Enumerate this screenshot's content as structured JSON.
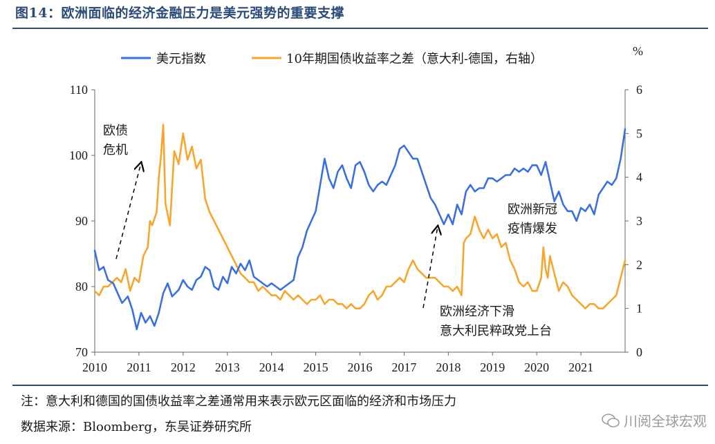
{
  "title": "图14：欧洲面临的经济金融压力是美元强势的重要支撑",
  "note": "注：意大利和德国的国债收益率之差通常用来表示欧元区面临的经济和市场压力",
  "source": "数据来源：Bloomberg，东吴证券研究所",
  "watermark": "川阅全球宏观",
  "chart_data": {
    "type": "line",
    "x_ticks": [
      "2010",
      "2011",
      "2012",
      "2013",
      "2014",
      "2015",
      "2016",
      "2017",
      "2018",
      "2019",
      "2020",
      "2021"
    ],
    "x_range": [
      2010.0,
      2022.0
    ],
    "y_left": {
      "ticks": [
        "70",
        "80",
        "90",
        "100",
        "110"
      ],
      "range": [
        70,
        110
      ]
    },
    "y_right": {
      "unit": "%",
      "ticks": [
        "0",
        "1",
        "2",
        "3",
        "4",
        "5",
        "6"
      ],
      "range": [
        0,
        6
      ]
    },
    "legend": [
      "美元指数",
      "10年期国债收益率之差（意大利-德国，右轴）"
    ],
    "annotations": [
      "欧债",
      "危机",
      "欧洲新冠",
      "疫情爆发",
      "欧洲经济下滑",
      "意大利民粹政党上台"
    ],
    "series": [
      {
        "name": "美元指数",
        "axis": "left",
        "color": "#3a6fe0",
        "x": [
          2010.0,
          2010.05,
          2010.1,
          2010.2,
          2010.3,
          2010.42,
          2010.55,
          2010.62,
          2010.75,
          2010.85,
          2010.95,
          2011.05,
          2011.15,
          2011.25,
          2011.35,
          2011.45,
          2011.55,
          2011.65,
          2011.75,
          2011.9,
          2012.0,
          2012.1,
          2012.2,
          2012.3,
          2012.4,
          2012.5,
          2012.6,
          2012.7,
          2012.8,
          2012.9,
          2013.0,
          2013.1,
          2013.2,
          2013.3,
          2013.4,
          2013.5,
          2013.6,
          2013.7,
          2013.8,
          2013.9,
          2014.0,
          2014.1,
          2014.2,
          2014.3,
          2014.4,
          2014.5,
          2014.6,
          2014.7,
          2014.8,
          2014.9,
          2015.0,
          2015.1,
          2015.2,
          2015.3,
          2015.4,
          2015.5,
          2015.6,
          2015.7,
          2015.8,
          2015.9,
          2016.0,
          2016.1,
          2016.2,
          2016.3,
          2016.4,
          2016.5,
          2016.6,
          2016.7,
          2016.8,
          2016.9,
          2017.0,
          2017.1,
          2017.2,
          2017.3,
          2017.4,
          2017.5,
          2017.6,
          2017.7,
          2017.8,
          2017.9,
          2018.0,
          2018.1,
          2018.2,
          2018.3,
          2018.4,
          2018.5,
          2018.6,
          2018.7,
          2018.8,
          2018.9,
          2019.0,
          2019.1,
          2019.2,
          2019.3,
          2019.4,
          2019.5,
          2019.6,
          2019.7,
          2019.8,
          2019.9,
          2020.0,
          2020.1,
          2020.2,
          2020.3,
          2020.4,
          2020.5,
          2020.6,
          2020.7,
          2020.8,
          2020.9,
          2021.0,
          2021.1,
          2021.2,
          2021.3,
          2021.4,
          2021.5,
          2021.6,
          2021.7,
          2021.8,
          2021.9,
          2022.0
        ],
        "values": [
          85.5,
          84.0,
          82.5,
          83.0,
          81.0,
          80.5,
          78.5,
          77.5,
          78.5,
          76.5,
          73.5,
          76.0,
          74.5,
          75.5,
          74.0,
          76.0,
          79.0,
          80.5,
          78.5,
          79.5,
          81.0,
          80.0,
          79.5,
          81.0,
          81.5,
          83.0,
          82.5,
          80.0,
          79.5,
          81.5,
          80.5,
          83.0,
          82.0,
          83.5,
          82.5,
          84.0,
          81.5,
          81.0,
          80.5,
          80.0,
          80.5,
          80.0,
          79.5,
          80.0,
          80.5,
          81.0,
          84.5,
          86.0,
          88.5,
          90.0,
          91.5,
          95.5,
          99.5,
          96.5,
          95.0,
          97.5,
          98.5,
          96.5,
          95.0,
          98.5,
          99.0,
          97.5,
          95.5,
          94.5,
          95.5,
          96.0,
          95.5,
          97.0,
          98.5,
          101.0,
          101.5,
          100.5,
          99.5,
          99.5,
          97.5,
          95.5,
          93.5,
          92.5,
          91.0,
          89.5,
          91.0,
          89.5,
          92.5,
          91.0,
          94.5,
          95.5,
          94.5,
          95.0,
          95.0,
          96.5,
          96.5,
          96.0,
          96.5,
          97.0,
          97.0,
          98.0,
          97.5,
          98.0,
          97.5,
          98.5,
          98.5,
          97.0,
          99.0,
          96.0,
          93.0,
          94.5,
          92.5,
          91.5,
          91.5,
          90.0,
          92.0,
          91.5,
          92.5,
          91.0,
          94.0,
          95.0,
          96.0,
          95.5,
          96.5,
          99.5,
          104.0
        ]
      },
      {
        "name": "10年期国债收益率之差（意大利-德国，右轴）",
        "axis": "right",
        "color": "#f6a52d",
        "x": [
          2010.0,
          2010.1,
          2010.2,
          2010.3,
          2010.4,
          2010.5,
          2010.6,
          2010.7,
          2010.8,
          2010.9,
          2011.0,
          2011.1,
          2011.2,
          2011.25,
          2011.3,
          2011.4,
          2011.45,
          2011.5,
          2011.55,
          2011.6,
          2011.7,
          2011.8,
          2011.9,
          2012.0,
          2012.1,
          2012.2,
          2012.3,
          2012.4,
          2012.5,
          2012.6,
          2012.7,
          2012.8,
          2012.9,
          2013.0,
          2013.1,
          2013.2,
          2013.3,
          2013.4,
          2013.5,
          2013.6,
          2013.7,
          2013.8,
          2013.9,
          2014.0,
          2014.1,
          2014.2,
          2014.3,
          2014.4,
          2014.5,
          2014.6,
          2014.7,
          2014.8,
          2014.9,
          2015.0,
          2015.1,
          2015.2,
          2015.3,
          2015.4,
          2015.5,
          2015.6,
          2015.7,
          2015.8,
          2015.9,
          2016.0,
          2016.1,
          2016.2,
          2016.3,
          2016.4,
          2016.5,
          2016.6,
          2016.7,
          2016.8,
          2016.9,
          2017.0,
          2017.1,
          2017.2,
          2017.3,
          2017.4,
          2017.5,
          2017.6,
          2017.7,
          2017.8,
          2017.9,
          2018.0,
          2018.1,
          2018.2,
          2018.3,
          2018.35,
          2018.4,
          2018.5,
          2018.6,
          2018.7,
          2018.8,
          2018.9,
          2019.0,
          2019.1,
          2019.2,
          2019.3,
          2019.4,
          2019.5,
          2019.6,
          2019.7,
          2019.8,
          2019.9,
          2020.0,
          2020.1,
          2020.15,
          2020.2,
          2020.25,
          2020.3,
          2020.4,
          2020.5,
          2020.6,
          2020.7,
          2020.8,
          2020.9,
          2021.0,
          2021.1,
          2021.2,
          2021.3,
          2021.4,
          2021.5,
          2021.6,
          2021.7,
          2021.8,
          2021.9,
          2022.0
        ],
        "values": [
          1.4,
          1.3,
          1.5,
          1.5,
          1.6,
          1.7,
          1.6,
          1.9,
          1.4,
          1.7,
          1.6,
          2.2,
          2.4,
          3.0,
          2.9,
          3.2,
          4.0,
          4.5,
          5.2,
          3.4,
          2.9,
          4.6,
          4.3,
          5.0,
          4.4,
          4.7,
          4.2,
          4.4,
          3.5,
          3.2,
          3.0,
          2.8,
          2.6,
          2.4,
          2.2,
          2.0,
          1.8,
          1.7,
          1.6,
          1.6,
          1.4,
          1.5,
          1.4,
          1.3,
          1.3,
          1.2,
          1.4,
          1.3,
          1.2,
          1.3,
          1.2,
          1.1,
          1.2,
          1.2,
          1.3,
          1.1,
          1.2,
          1.2,
          1.1,
          1.1,
          1.0,
          1.1,
          1.0,
          1.0,
          1.1,
          1.3,
          1.4,
          1.2,
          1.3,
          1.5,
          1.5,
          1.6,
          1.7,
          1.6,
          1.9,
          2.1,
          1.9,
          1.8,
          1.7,
          1.7,
          1.7,
          1.6,
          1.5,
          1.5,
          1.4,
          1.5,
          1.3,
          2.5,
          2.6,
          2.7,
          3.1,
          2.8,
          2.6,
          2.8,
          2.6,
          2.7,
          2.4,
          2.5,
          2.1,
          1.9,
          1.6,
          1.5,
          1.6,
          1.4,
          1.4,
          1.7,
          2.4,
          1.9,
          1.7,
          2.2,
          1.8,
          1.4,
          1.6,
          1.5,
          1.3,
          1.2,
          1.1,
          1.0,
          1.1,
          1.1,
          1.0,
          1.0,
          1.1,
          1.2,
          1.3,
          1.7,
          2.1
        ]
      }
    ]
  }
}
